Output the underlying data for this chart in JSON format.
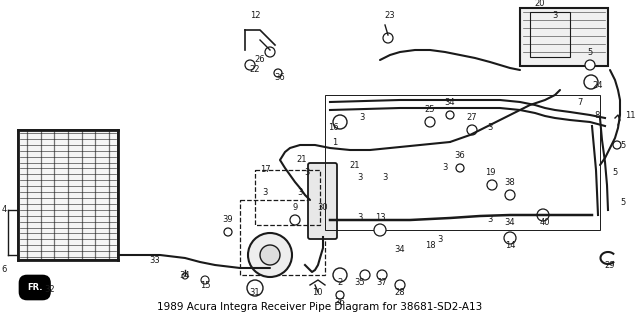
{
  "title": "1989 Acura Integra Receiver Pipe Diagram for 38681-SD2-A13",
  "background_color": "#ffffff",
  "title_font_size": 7.5,
  "title_color": "#000000",
  "image_data_url": "target_embedded"
}
